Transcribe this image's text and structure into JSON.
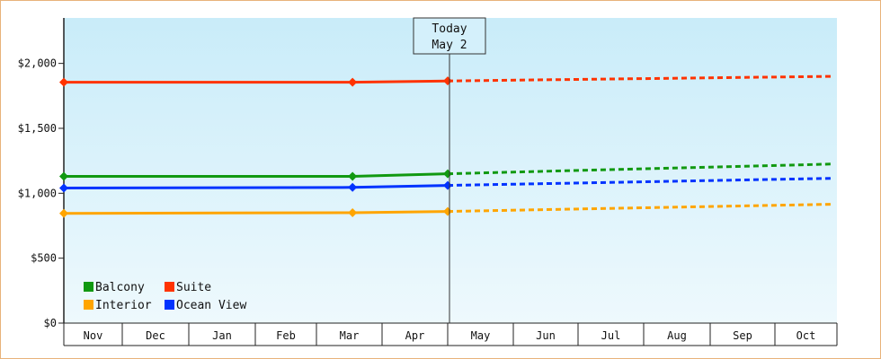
{
  "chart_data": {
    "type": "line",
    "categories": [
      "Nov",
      "Dec",
      "Jan",
      "Feb",
      "Mar",
      "Apr",
      "May",
      "Jun",
      "Jul",
      "Aug",
      "Sep",
      "Oct"
    ],
    "ylim": [
      0,
      2350
    ],
    "ytick_values": [
      0,
      500,
      1000,
      1500,
      2000
    ],
    "ytick_labels": [
      "$0",
      "$500",
      "$1,000",
      "$1,500",
      "$2,000"
    ],
    "today_marker": {
      "line1": "Today",
      "line2": "May 2",
      "month_index": 6
    },
    "grid": false,
    "legend_position": "bottom-left",
    "series": [
      {
        "name": "Suite",
        "color": "#ff3300",
        "actual": [
          {
            "m": 0,
            "y": 1855
          },
          {
            "m": 4.55,
            "y": 1855
          },
          {
            "m": 6,
            "y": 1865
          }
        ],
        "forecast": [
          {
            "m": 6,
            "y": 1865
          },
          {
            "m": 11.9,
            "y": 1900
          }
        ]
      },
      {
        "name": "Balcony",
        "color": "#119911",
        "actual": [
          {
            "m": 0,
            "y": 1130
          },
          {
            "m": 4.55,
            "y": 1130
          },
          {
            "m": 6,
            "y": 1150
          }
        ],
        "forecast": [
          {
            "m": 6,
            "y": 1150
          },
          {
            "m": 11.9,
            "y": 1225
          }
        ]
      },
      {
        "name": "Ocean View",
        "color": "#0033ff",
        "actual": [
          {
            "m": 0,
            "y": 1040
          },
          {
            "m": 4.55,
            "y": 1045
          },
          {
            "m": 6,
            "y": 1060
          }
        ],
        "forecast": [
          {
            "m": 6,
            "y": 1060
          },
          {
            "m": 11.9,
            "y": 1115
          }
        ]
      },
      {
        "name": "Interior",
        "color": "#ffa500",
        "actual": [
          {
            "m": 0,
            "y": 845
          },
          {
            "m": 4.55,
            "y": 850
          },
          {
            "m": 6,
            "y": 860
          }
        ],
        "forecast": [
          {
            "m": 6,
            "y": 860
          },
          {
            "m": 11.9,
            "y": 915
          }
        ]
      }
    ],
    "legend_order": [
      "Balcony",
      "Suite",
      "Interior",
      "Ocean View"
    ]
  }
}
